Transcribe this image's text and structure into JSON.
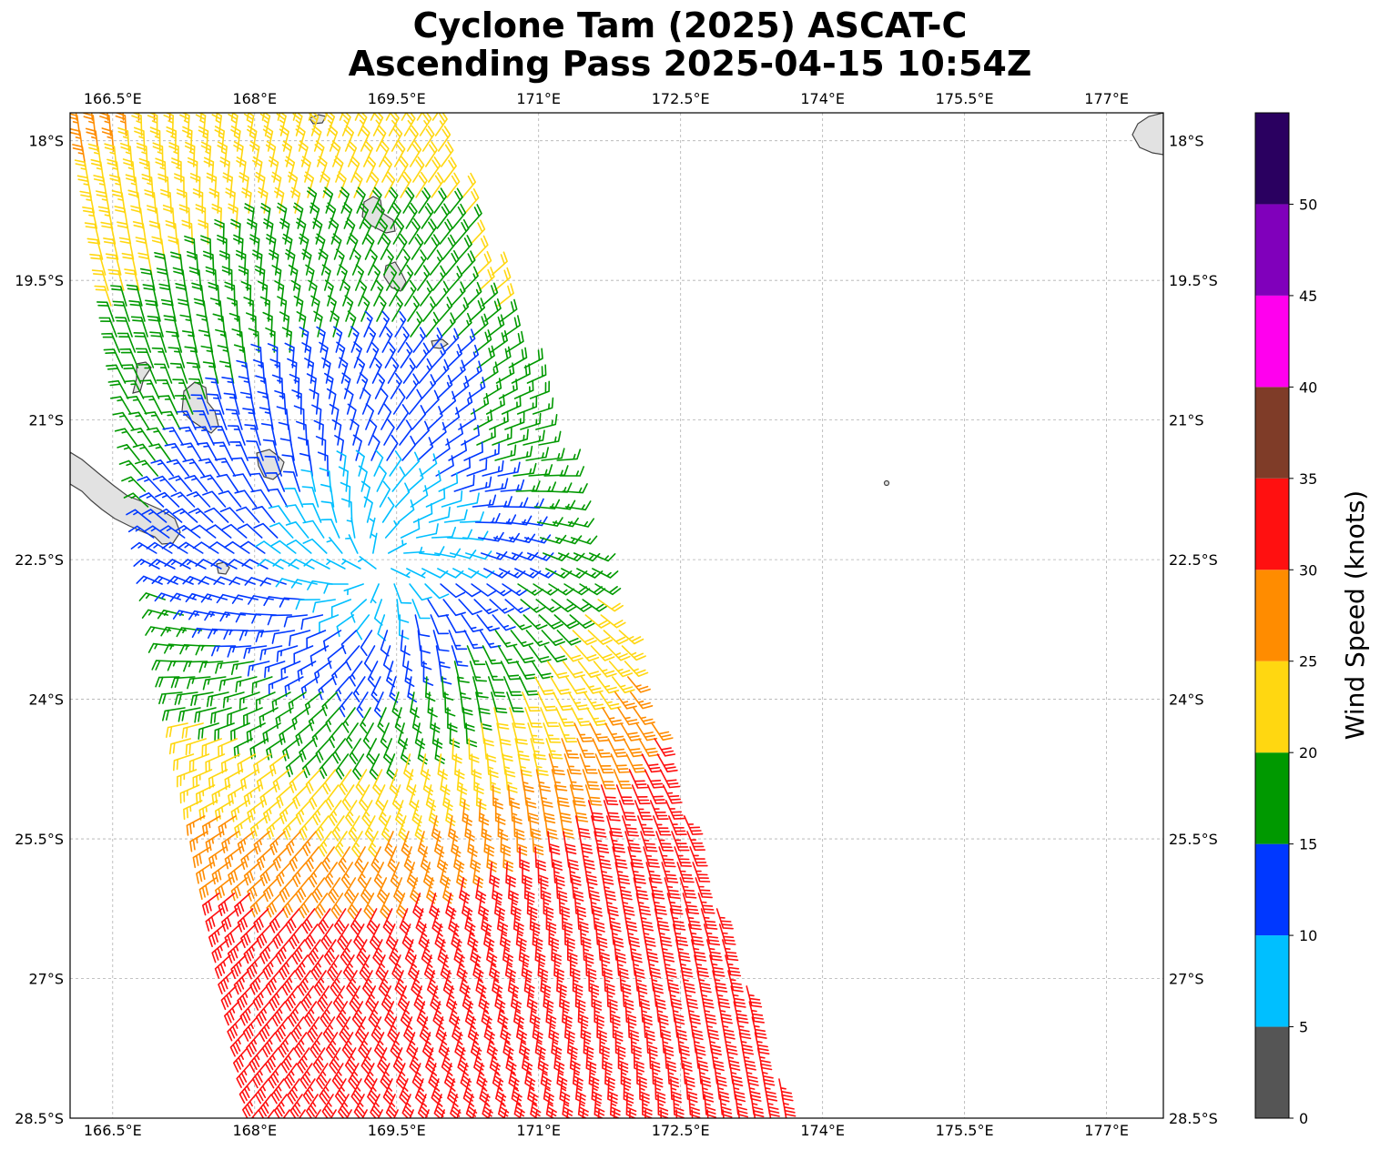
{
  "title": {
    "line1": "Cyclone Tam (2025) ASCAT-C",
    "line2": "Ascending Pass 2025-04-15 10:54Z"
  },
  "map": {
    "lon_range": [
      166.05,
      177.6
    ],
    "lat_range": [
      -28.5,
      -17.7
    ],
    "lon_ticks": [
      166.5,
      168,
      169.5,
      171,
      172.5,
      174,
      175.5,
      177
    ],
    "lat_ticks": [
      -18,
      -19.5,
      -21,
      -22.5,
      -24,
      -25.5,
      -27,
      -28.5
    ],
    "lon_tick_labels": [
      "166.5°E",
      "168°E",
      "169.5°E",
      "171°E",
      "172.5°E",
      "174°E",
      "175.5°E",
      "177°E"
    ],
    "lat_tick_labels": [
      "18°S",
      "19.5°S",
      "21°S",
      "22.5°S",
      "24°S",
      "25.5°S",
      "27°S",
      "28.5°S"
    ],
    "gridlines": true,
    "land_features": [
      "new-caledonia",
      "loyalty-islands",
      "vanuatu-islands",
      "fiji-edge"
    ],
    "swath": {
      "corners_lonlat": [
        [
          166.05,
          -17.7
        ],
        [
          169.9,
          -17.7
        ],
        [
          173.7,
          -28.5
        ],
        [
          168.0,
          -28.5
        ]
      ],
      "wind_field_note": "cyclonic flow with strongest winds south-east of the centre"
    }
  },
  "colorbar": {
    "label": "Wind Speed (knots)",
    "bins": [
      {
        "min": 0,
        "max": 5,
        "color": "#555555"
      },
      {
        "min": 5,
        "max": 10,
        "color": "#00bfff"
      },
      {
        "min": 10,
        "max": 15,
        "color": "#0038ff"
      },
      {
        "min": 15,
        "max": 20,
        "color": "#009900"
      },
      {
        "min": 20,
        "max": 25,
        "color": "#ffd711"
      },
      {
        "min": 25,
        "max": 30,
        "color": "#ff8c00"
      },
      {
        "min": 30,
        "max": 35,
        "color": "#ff1010"
      },
      {
        "min": 35,
        "max": 40,
        "color": "#7f3c28"
      },
      {
        "min": 40,
        "max": 45,
        "color": "#ff00ee"
      },
      {
        "min": 45,
        "max": 50,
        "color": "#8000bb"
      },
      {
        "min": 50,
        "max": 55,
        "color": "#2a0060"
      }
    ],
    "tick_values": [
      0,
      5,
      10,
      15,
      20,
      25,
      30,
      35,
      40,
      45,
      50
    ],
    "tick_labels": [
      "0",
      "5",
      "10",
      "15",
      "20",
      "25",
      "30",
      "35",
      "40",
      "45",
      "50"
    ]
  }
}
